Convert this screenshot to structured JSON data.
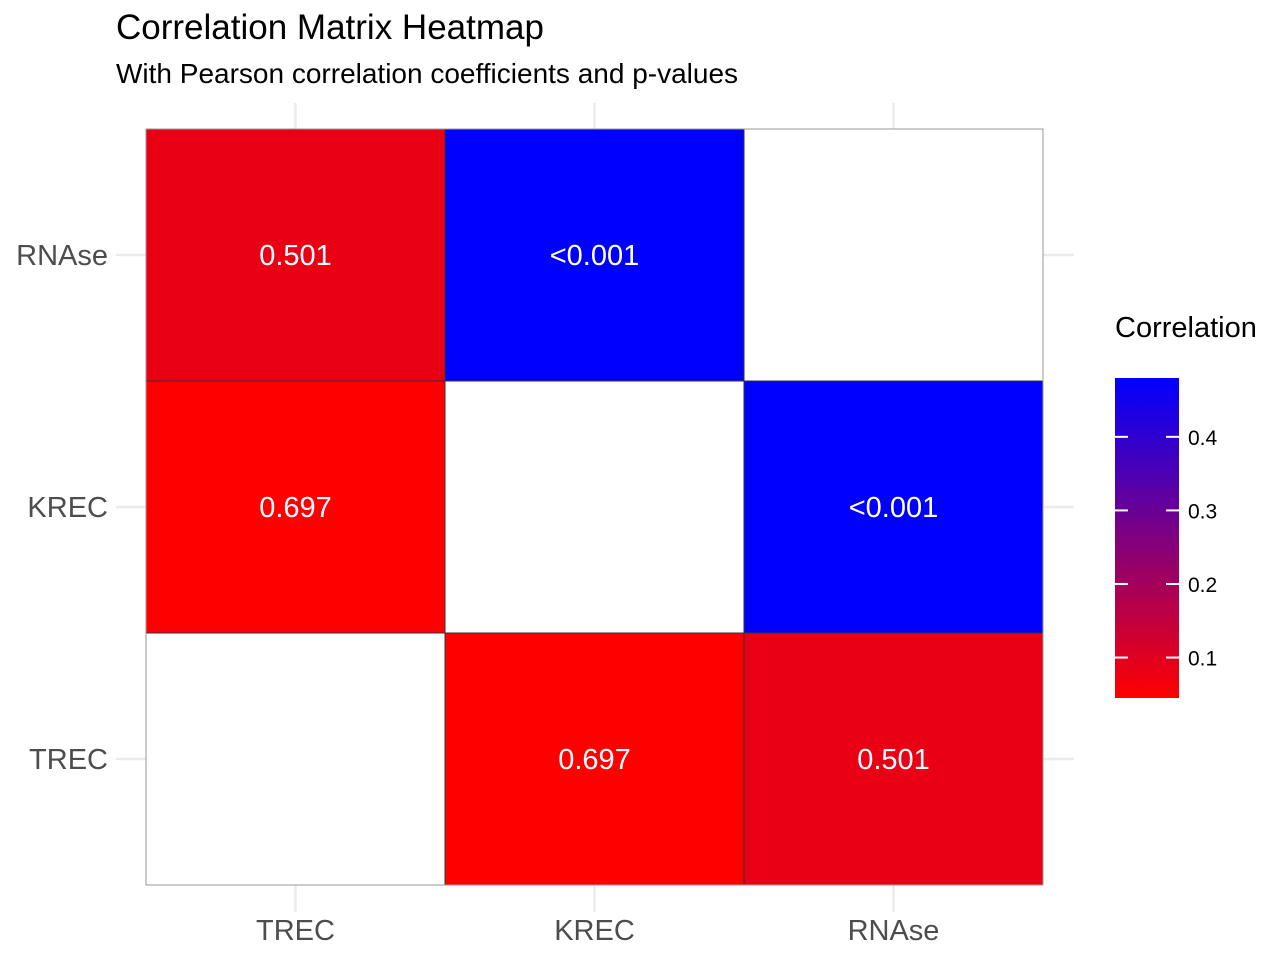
{
  "chart_data": {
    "type": "heatmap",
    "title": "Correlation Matrix Heatmap",
    "subtitle": "With Pearson correlation coefficients and p-values",
    "x_categories": [
      "TREC",
      "KREC",
      "RNAse"
    ],
    "y_categories": [
      "TREC",
      "KREC",
      "RNAse"
    ],
    "cells": [
      {
        "x": "TREC",
        "y": "TREC",
        "fill": null,
        "label": ""
      },
      {
        "x": "KREC",
        "y": "TREC",
        "fill": 0.045,
        "label": "0.697"
      },
      {
        "x": "RNAse",
        "y": "TREC",
        "fill": 0.08,
        "label": "0.501"
      },
      {
        "x": "TREC",
        "y": "KREC",
        "fill": 0.045,
        "label": "0.697"
      },
      {
        "x": "KREC",
        "y": "KREC",
        "fill": null,
        "label": ""
      },
      {
        "x": "RNAse",
        "y": "KREC",
        "fill": 0.48,
        "label": "<0.001"
      },
      {
        "x": "TREC",
        "y": "RNAse",
        "fill": 0.08,
        "label": "0.501"
      },
      {
        "x": "KREC",
        "y": "RNAse",
        "fill": 0.48,
        "label": "<0.001"
      },
      {
        "x": "RNAse",
        "y": "RNAse",
        "fill": null,
        "label": ""
      }
    ],
    "legend": {
      "title": "Correlation",
      "range": [
        0.045,
        0.48
      ],
      "ticks": [
        0.1,
        0.2,
        0.3,
        0.4
      ],
      "tick_labels": [
        "0.1",
        "0.2",
        "0.3",
        "0.4"
      ],
      "low_color": "#ff0000",
      "high_color": "#0000ff",
      "na_color": "#ffffff"
    },
    "grid": true,
    "legend_position": "right"
  }
}
